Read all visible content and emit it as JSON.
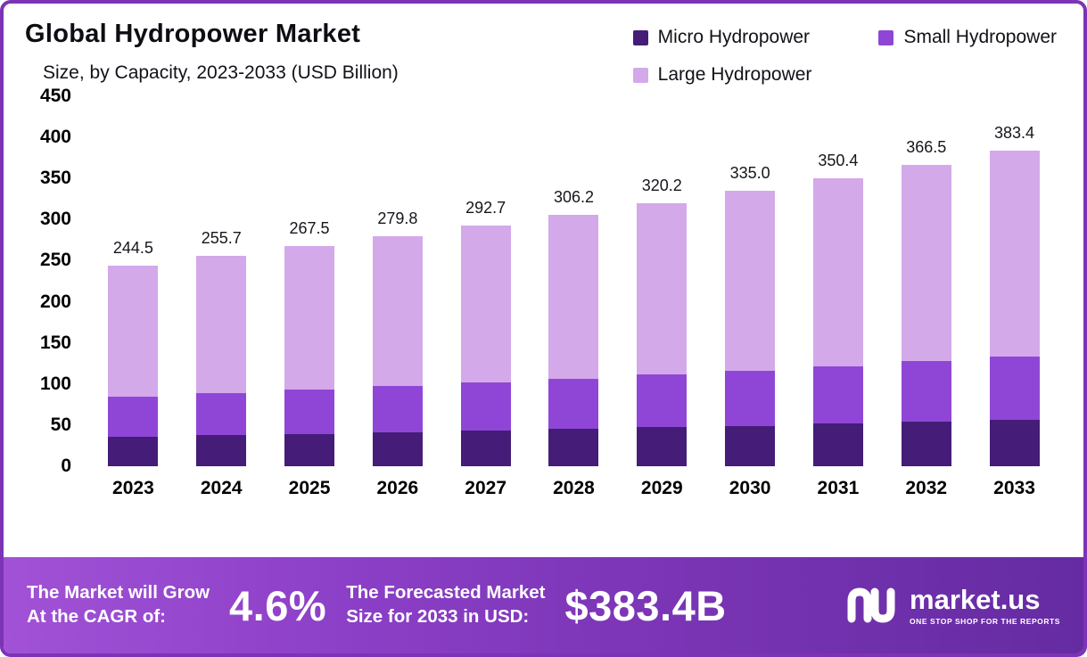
{
  "header": {
    "title": "Global Hydropower Market",
    "subtitle": "Size, by Capacity, 2023-2033 (USD Billion)"
  },
  "chart_data": {
    "type": "bar",
    "stacked": true,
    "title": "Global Hydropower Market Size, by Capacity, 2023-2033 (USD Billion)",
    "categories": [
      "2023",
      "2024",
      "2025",
      "2026",
      "2027",
      "2028",
      "2029",
      "2030",
      "2031",
      "2032",
      "2033"
    ],
    "series": [
      {
        "name": "Micro Hydropower",
        "color": "#451c77",
        "values": [
          36.0,
          37.7,
          39.4,
          41.2,
          43.1,
          45.1,
          47.2,
          49.3,
          51.6,
          54.0,
          56.5
        ]
      },
      {
        "name": "Small Hydropower",
        "color": "#8f46d6",
        "values": [
          49.0,
          51.3,
          53.6,
          56.1,
          58.7,
          61.4,
          64.2,
          67.1,
          70.2,
          73.5,
          76.8
        ]
      },
      {
        "name": "Large Hydropower",
        "color": "#d3a9ea",
        "values": [
          159.5,
          166.7,
          174.5,
          182.5,
          190.9,
          199.7,
          208.8,
          218.6,
          228.6,
          239.0,
          250.1
        ]
      }
    ],
    "totals": [
      244.5,
      255.7,
      267.5,
      279.8,
      292.7,
      306.2,
      320.2,
      335.0,
      350.4,
      366.5,
      383.4
    ],
    "ylabel": "",
    "xlabel": "",
    "ylim": [
      0,
      450
    ],
    "ytick_step": 50,
    "grid": false,
    "legend_position": "top-right"
  },
  "footer": {
    "cagr_label_line1": "The Market will Grow",
    "cagr_label_line2": "At the CAGR of:",
    "cagr_value": "4.6%",
    "forecast_label_line1": "The Forecasted Market",
    "forecast_label_line2": "Size for 2033 in USD:",
    "forecast_value": "$383.4B",
    "brand": "market.us",
    "brand_tagline": "ONE STOP SHOP FOR THE REPORTS"
  },
  "colors": {
    "frame_border": "#7d33b5",
    "banner_gradient_start": "#a152d6",
    "banner_gradient_end": "#652ba2",
    "text": "#0d0d14"
  }
}
